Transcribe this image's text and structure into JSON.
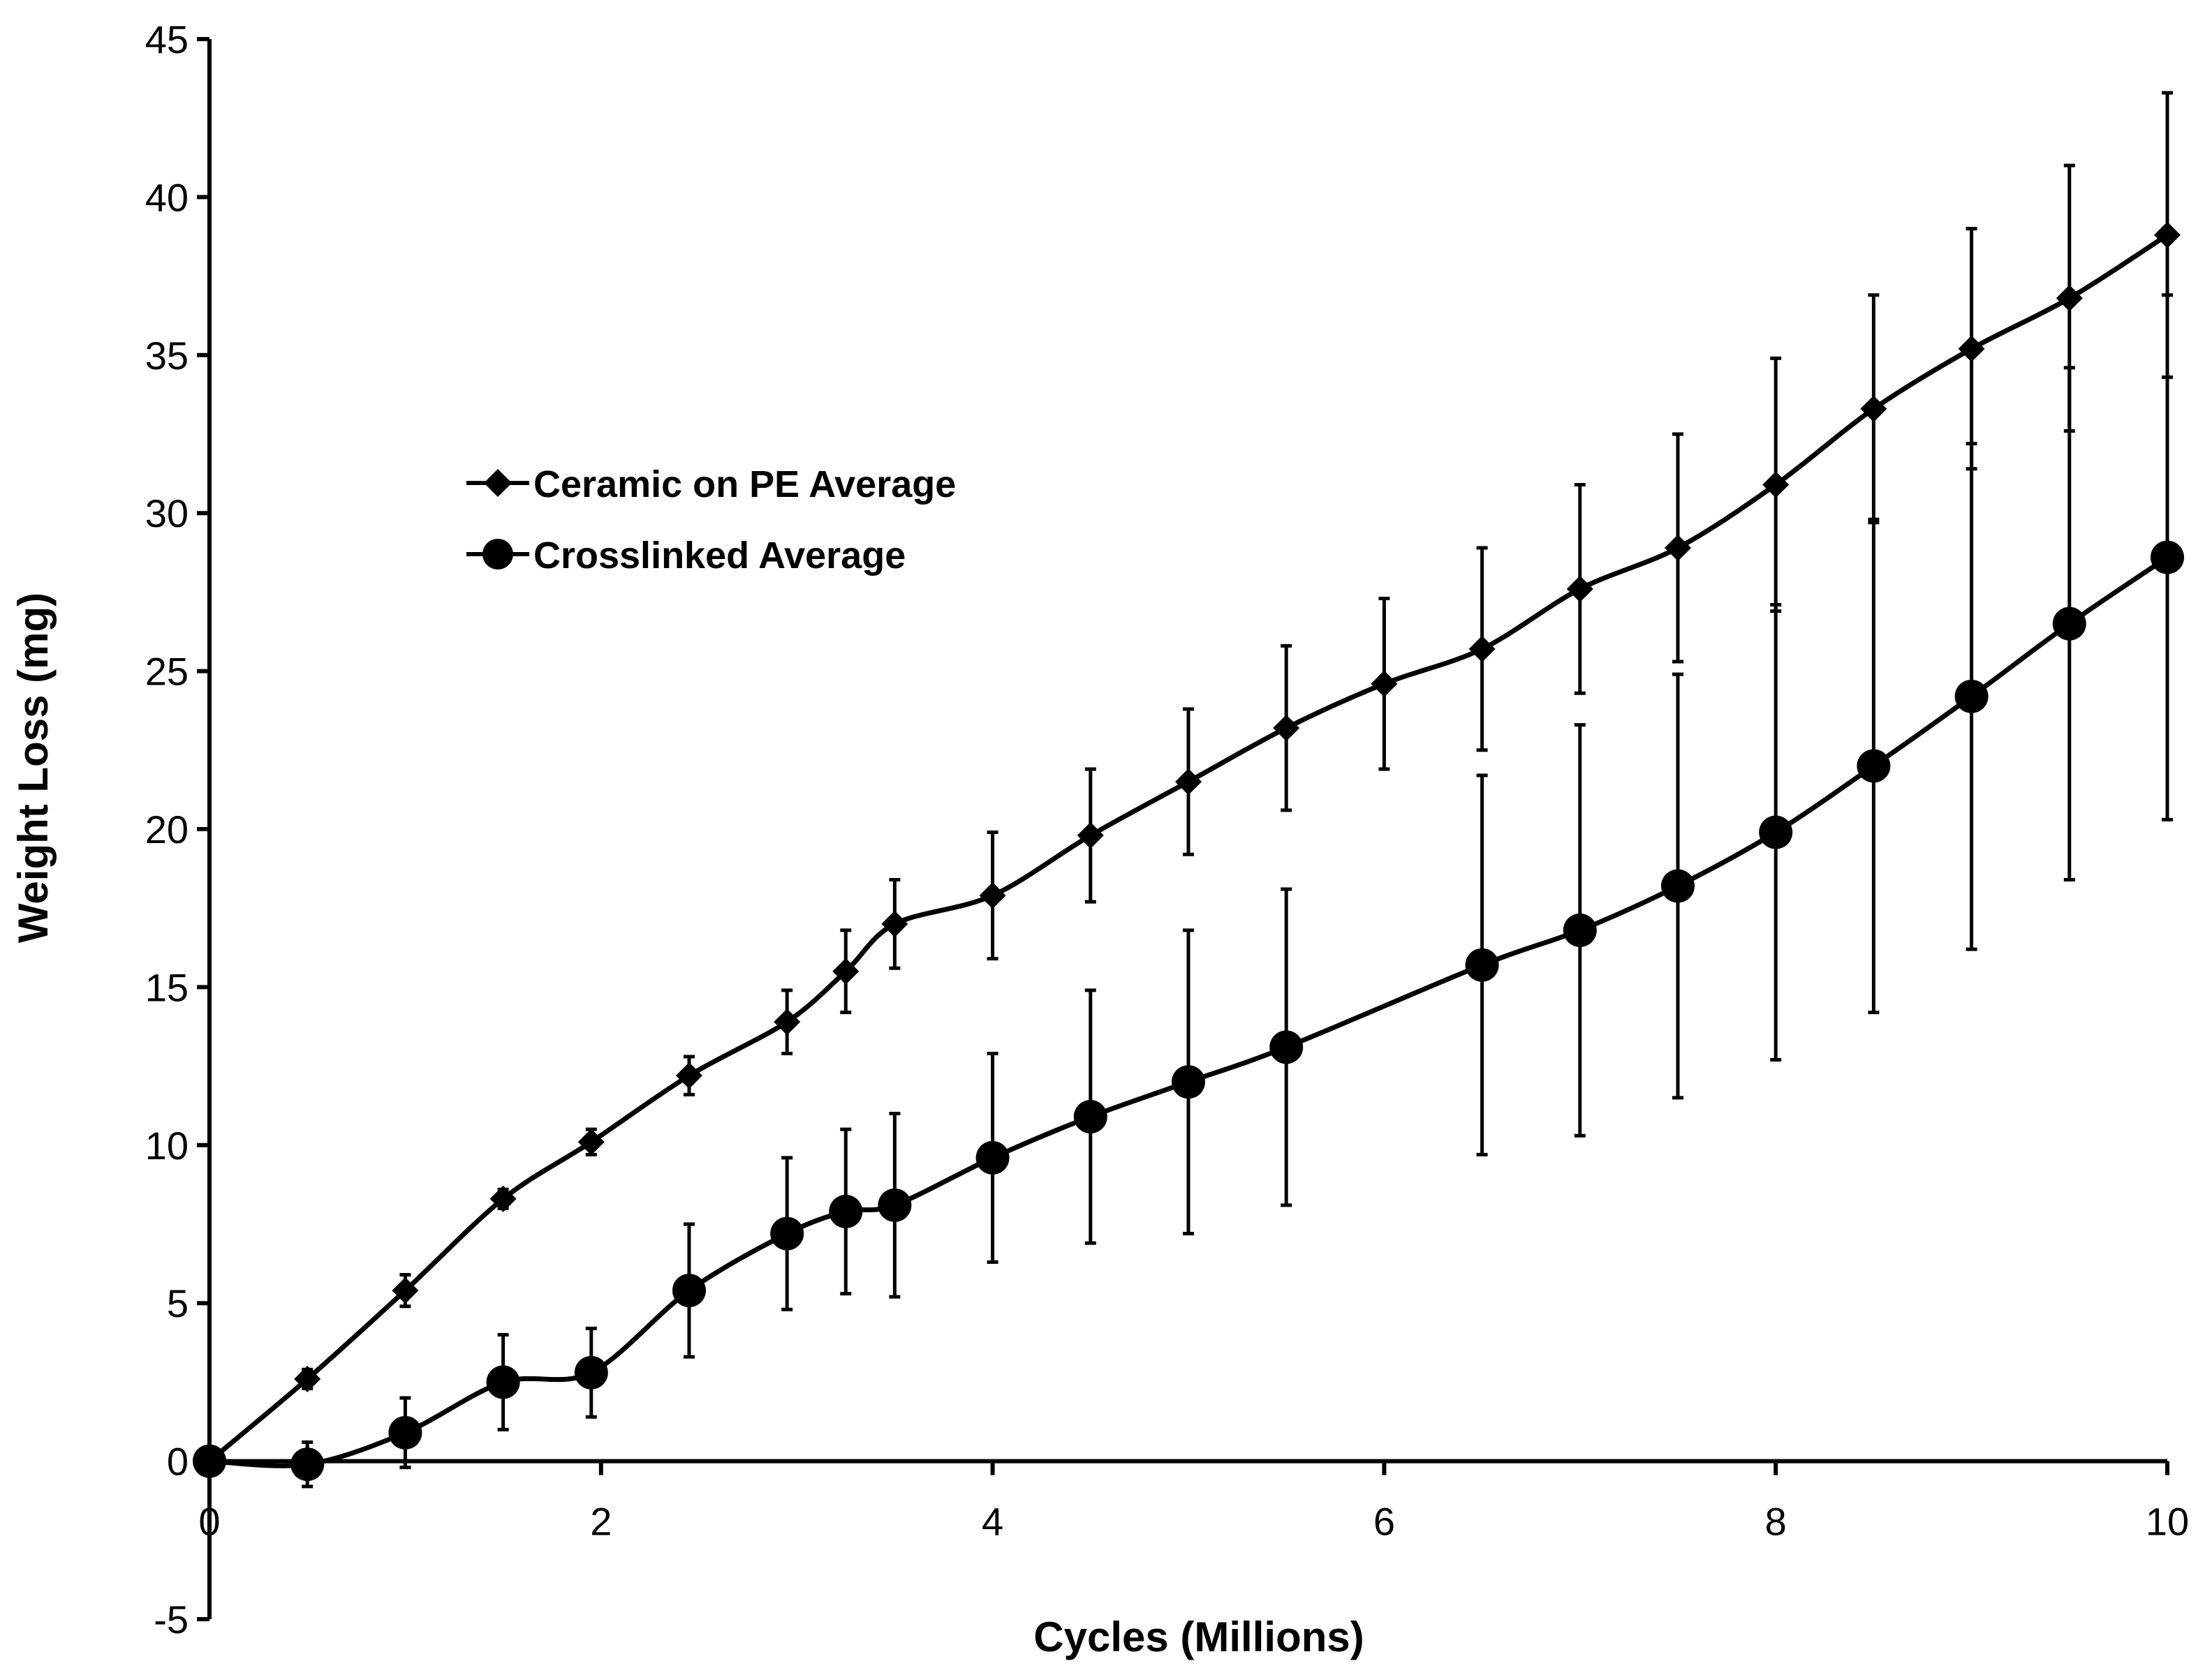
{
  "chart_data": {
    "type": "line",
    "title": "",
    "xlabel": "Cycles (Millions)",
    "ylabel": "Weight Loss (mg)",
    "xlim": [
      0,
      10
    ],
    "ylim": [
      -5,
      45
    ],
    "xticks": [
      "0",
      "2",
      "4",
      "6",
      "8",
      "10"
    ],
    "yticks": [
      "-5",
      "0",
      "5",
      "10",
      "15",
      "20",
      "25",
      "30",
      "35",
      "40",
      "45"
    ],
    "grid": false,
    "legend_position": "upper-left",
    "colors": {
      "line": "#000000"
    },
    "series": [
      {
        "name": "Ceramic on PE Average",
        "marker": "diamond",
        "x": [
          0,
          0.5,
          1.0,
          1.5,
          1.95,
          2.45,
          2.95,
          3.25,
          3.5,
          4.0,
          4.5,
          5.0,
          5.5,
          6.0,
          6.5,
          7.0,
          7.5,
          8.0,
          8.5,
          9.0,
          9.5,
          10.0
        ],
        "y": [
          0,
          2.6,
          5.4,
          8.3,
          10.1,
          12.2,
          13.9,
          15.5,
          17.0,
          17.9,
          19.8,
          21.5,
          23.2,
          24.6,
          25.7,
          27.6,
          28.9,
          30.9,
          33.3,
          35.2,
          36.8,
          38.8
        ],
        "err": [
          0,
          0.3,
          0.5,
          0.3,
          0.4,
          0.6,
          1.0,
          1.3,
          1.4,
          2.0,
          2.1,
          2.3,
          2.6,
          2.7,
          3.2,
          3.3,
          3.6,
          4.0,
          3.6,
          3.8,
          4.2,
          4.5
        ]
      },
      {
        "name": "Crosslinked Average",
        "marker": "circle",
        "x": [
          0,
          0.5,
          1.0,
          1.5,
          1.95,
          2.45,
          2.95,
          3.25,
          3.5,
          4.0,
          4.5,
          5.0,
          5.5,
          6.5,
          7.0,
          7.5,
          8.0,
          8.5,
          9.0,
          9.5,
          10.0
        ],
        "y": [
          0,
          -0.1,
          0.9,
          2.5,
          2.8,
          5.4,
          7.2,
          7.9,
          8.1,
          9.6,
          10.9,
          12.0,
          13.1,
          15.7,
          16.8,
          18.2,
          19.9,
          22.0,
          24.2,
          26.5,
          28.6
        ],
        "err": [
          0,
          0.7,
          1.1,
          1.5,
          1.4,
          2.1,
          2.4,
          2.6,
          2.9,
          3.3,
          4.0,
          4.8,
          5.0,
          6.0,
          6.5,
          6.7,
          7.2,
          7.8,
          8.0,
          8.1,
          8.3
        ]
      }
    ]
  }
}
